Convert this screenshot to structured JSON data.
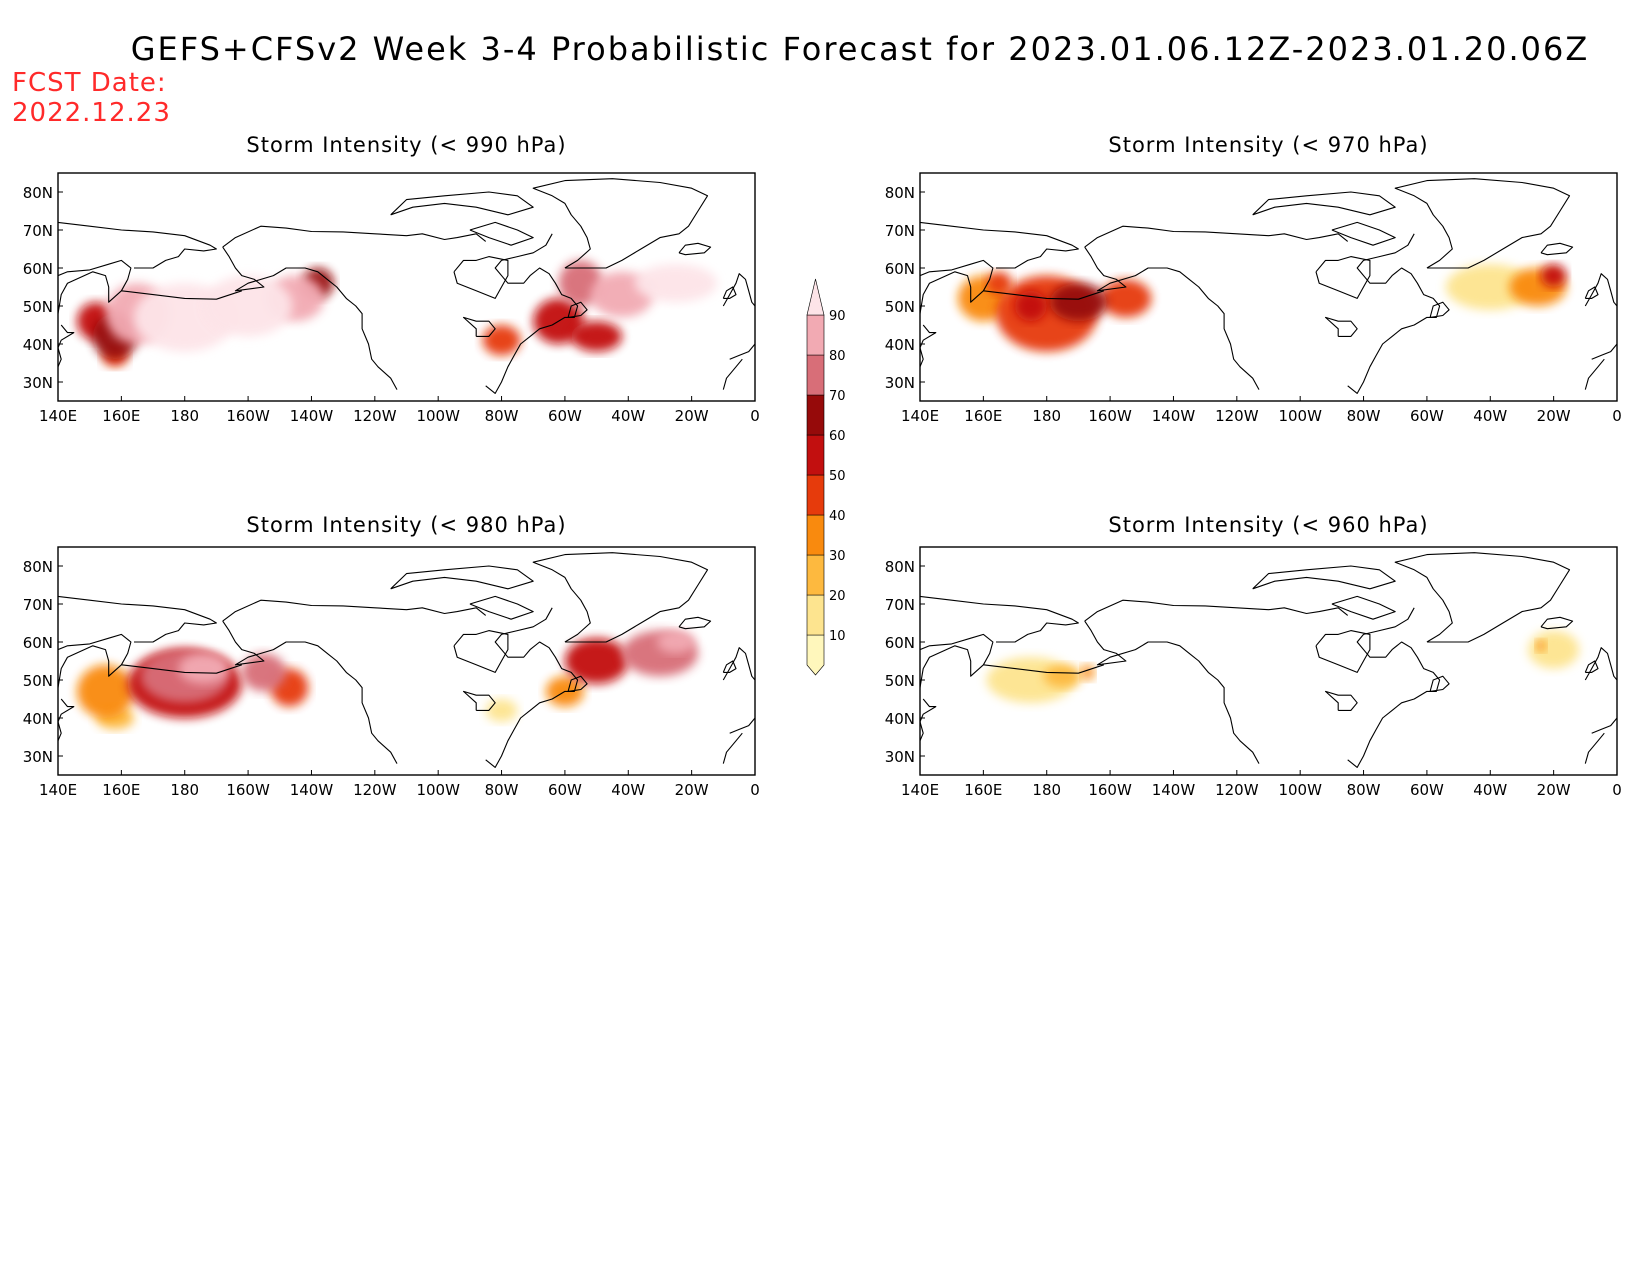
{
  "title": "GEFS+CFSv2 Week 3-4 Probabilistic Forecast for 2023.01.06.12Z-2023.01.20.06Z",
  "fcst_label": "FCST Date:",
  "fcst_date": "2022.12.23",
  "colorbar": {
    "levels": [
      10,
      20,
      30,
      40,
      50,
      60,
      70,
      80,
      90
    ],
    "colors": [
      "#fff7bc",
      "#fde48f",
      "#fdb93f",
      "#f98a0e",
      "#e63b0c",
      "#c20f0f",
      "#960a0a",
      "#d86e78",
      "#f2aab3",
      "#fde4e8"
    ]
  },
  "axes": {
    "lon_ticks": [
      "140E",
      "160E",
      "180",
      "160W",
      "140W",
      "120W",
      "100W",
      "80W",
      "60W",
      "40W",
      "20W",
      "0"
    ],
    "lat_ticks": [
      "80N",
      "70N",
      "60N",
      "50N",
      "40N",
      "30N"
    ],
    "lon_range": [
      140,
      360
    ],
    "lat_range": [
      25,
      85
    ]
  },
  "chart_data": [
    {
      "type": "heatmap",
      "title": "Storm Intensity (< 990 hPa)",
      "regions": [
        {
          "lon": 152,
          "lat": 46,
          "value": 55,
          "rx": 6,
          "ry": 5
        },
        {
          "lon": 158,
          "lat": 42,
          "value": 60,
          "rx": 7,
          "ry": 6
        },
        {
          "lon": 165,
          "lat": 48,
          "value": 80,
          "rx": 10,
          "ry": 8
        },
        {
          "lon": 180,
          "lat": 47,
          "value": 90,
          "rx": 16,
          "ry": 9
        },
        {
          "lon": 200,
          "lat": 50,
          "value": 90,
          "rx": 14,
          "ry": 8
        },
        {
          "lon": 215,
          "lat": 52,
          "value": 80,
          "rx": 9,
          "ry": 6
        },
        {
          "lon": 222,
          "lat": 56,
          "value": 60,
          "rx": 5,
          "ry": 4
        },
        {
          "lon": 158,
          "lat": 37,
          "value": 40,
          "rx": 4,
          "ry": 3
        },
        {
          "lon": 280,
          "lat": 41,
          "value": 40,
          "rx": 6,
          "ry": 4
        },
        {
          "lon": 298,
          "lat": 46,
          "value": 50,
          "rx": 8,
          "ry": 6
        },
        {
          "lon": 305,
          "lat": 56,
          "value": 70,
          "rx": 7,
          "ry": 6
        },
        {
          "lon": 318,
          "lat": 53,
          "value": 80,
          "rx": 10,
          "ry": 6
        },
        {
          "lon": 335,
          "lat": 56,
          "value": 90,
          "rx": 13,
          "ry": 5
        },
        {
          "lon": 310,
          "lat": 42,
          "value": 50,
          "rx": 8,
          "ry": 4
        }
      ]
    },
    {
      "type": "heatmap",
      "title": "Storm Intensity (< 970 hPa)",
      "regions": [
        {
          "lon": 160,
          "lat": 52,
          "value": 30,
          "rx": 8,
          "ry": 6
        },
        {
          "lon": 180,
          "lat": 48,
          "value": 40,
          "rx": 16,
          "ry": 10
        },
        {
          "lon": 190,
          "lat": 51,
          "value": 60,
          "rx": 9,
          "ry": 5
        },
        {
          "lon": 205,
          "lat": 52,
          "value": 40,
          "rx": 8,
          "ry": 5
        },
        {
          "lon": 175,
          "lat": 50,
          "value": 50,
          "rx": 5,
          "ry": 4
        },
        {
          "lon": 165,
          "lat": 56,
          "value": 40,
          "rx": 4,
          "ry": 3
        },
        {
          "lon": 320,
          "lat": 55,
          "value": 10,
          "rx": 14,
          "ry": 6
        },
        {
          "lon": 335,
          "lat": 55,
          "value": 30,
          "rx": 9,
          "ry": 5
        },
        {
          "lon": 340,
          "lat": 58,
          "value": 50,
          "rx": 4,
          "ry": 3
        }
      ]
    },
    {
      "type": "heatmap",
      "title": "Storm Intensity (< 980 hPa)",
      "regions": [
        {
          "lon": 155,
          "lat": 47,
          "value": 30,
          "rx": 9,
          "ry": 7
        },
        {
          "lon": 180,
          "lat": 49,
          "value": 50,
          "rx": 18,
          "ry": 9
        },
        {
          "lon": 180,
          "lat": 51,
          "value": 70,
          "rx": 14,
          "ry": 7
        },
        {
          "lon": 186,
          "lat": 53,
          "value": 80,
          "rx": 8,
          "ry": 4
        },
        {
          "lon": 205,
          "lat": 52,
          "value": 70,
          "rx": 7,
          "ry": 5
        },
        {
          "lon": 213,
          "lat": 48,
          "value": 40,
          "rx": 6,
          "ry": 5
        },
        {
          "lon": 158,
          "lat": 40,
          "value": 20,
          "rx": 6,
          "ry": 3
        },
        {
          "lon": 310,
          "lat": 55,
          "value": 50,
          "rx": 10,
          "ry": 6
        },
        {
          "lon": 330,
          "lat": 57,
          "value": 70,
          "rx": 12,
          "ry": 6
        },
        {
          "lon": 335,
          "lat": 60,
          "value": 80,
          "rx": 6,
          "ry": 3
        },
        {
          "lon": 300,
          "lat": 47,
          "value": 30,
          "rx": 6,
          "ry": 4
        },
        {
          "lon": 280,
          "lat": 42,
          "value": 10,
          "rx": 5,
          "ry": 3
        }
      ]
    },
    {
      "type": "heatmap",
      "title": "Storm Intensity (< 960 hPa)",
      "regions": [
        {
          "lon": 175,
          "lat": 50,
          "value": 10,
          "rx": 14,
          "ry": 6
        },
        {
          "lon": 185,
          "lat": 51,
          "value": 20,
          "rx": 6,
          "ry": 3
        },
        {
          "lon": 193,
          "lat": 52,
          "value": 30,
          "rx": 2,
          "ry": 2
        },
        {
          "lon": 340,
          "lat": 58,
          "value": 10,
          "rx": 8,
          "ry": 5
        },
        {
          "lon": 336,
          "lat": 59,
          "value": 30,
          "rx": 1.5,
          "ry": 1.5
        }
      ]
    }
  ]
}
